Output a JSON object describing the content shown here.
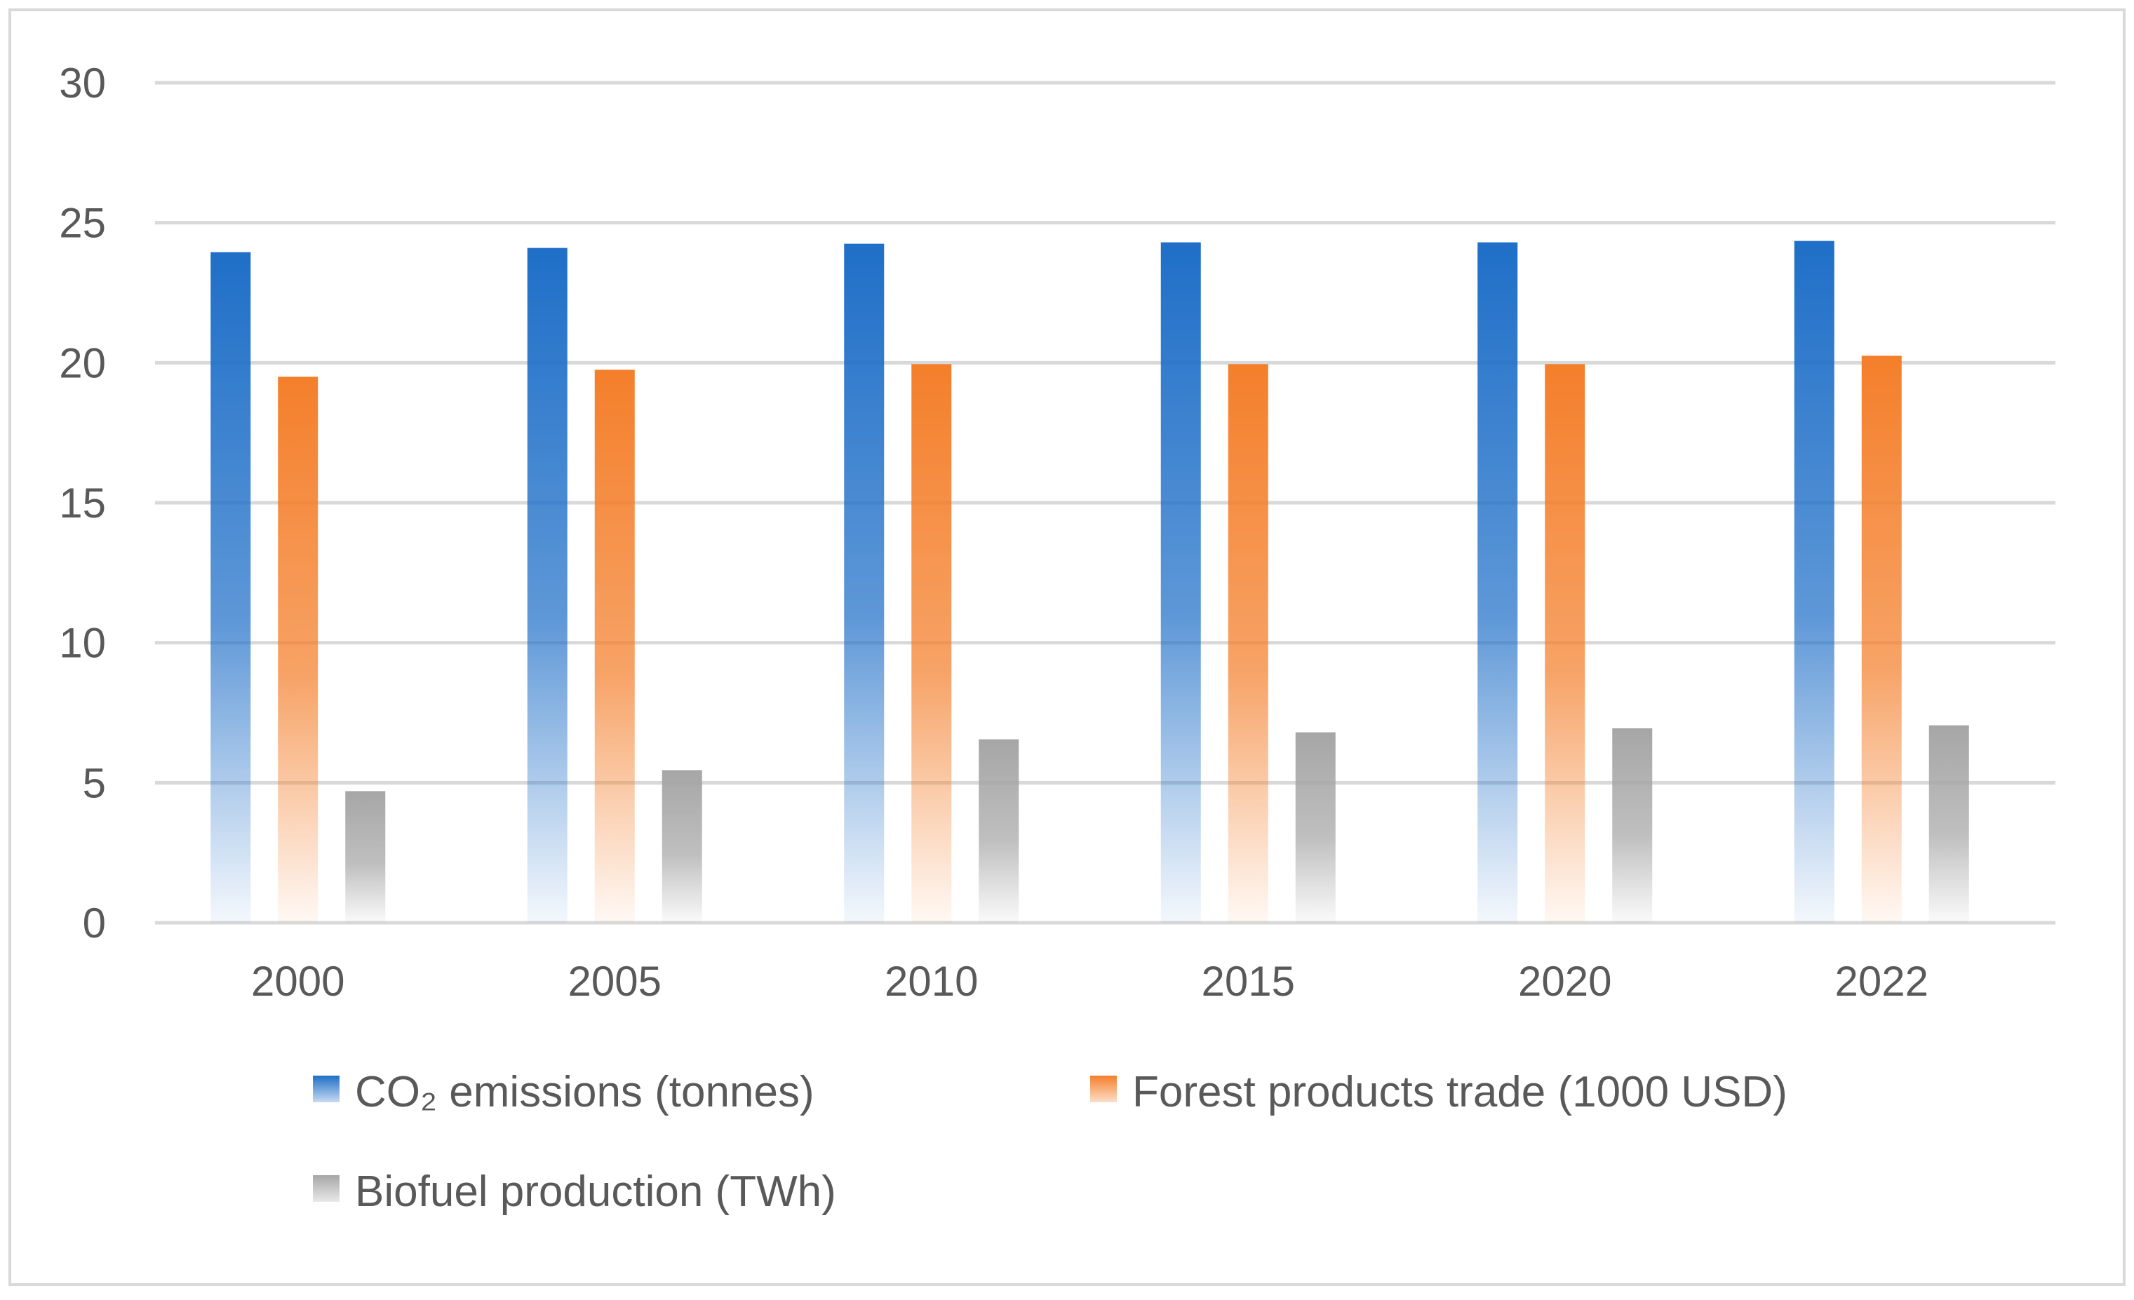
{
  "chart_data": {
    "type": "bar",
    "title": "",
    "xlabel": "",
    "ylabel": "",
    "categories": [
      "2000",
      "2005",
      "2010",
      "2015",
      "2020",
      "2022"
    ],
    "series": [
      {
        "name": "CO₂ emissions (tonnes)",
        "color": "#1f6fc8",
        "values": [
          23.95,
          24.1,
          24.25,
          24.3,
          24.3,
          24.35
        ]
      },
      {
        "name": "Forest products trade (1000 USD)",
        "color": "#f47f2b",
        "values": [
          19.5,
          19.75,
          19.95,
          19.95,
          19.95,
          20.25
        ]
      },
      {
        "name": "Biofuel production (TWh)",
        "color": "#a6a6a6",
        "values": [
          4.7,
          5.45,
          6.55,
          6.8,
          6.95,
          7.05
        ]
      }
    ],
    "ylim": [
      0,
      30
    ],
    "yticks": [
      0,
      5,
      10,
      15,
      20,
      25,
      30
    ],
    "grid": true,
    "legend_position": "bottom"
  }
}
